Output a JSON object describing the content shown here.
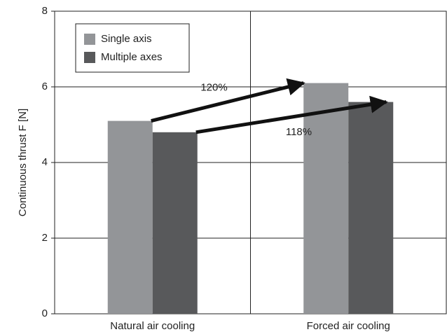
{
  "chart_data": {
    "type": "bar",
    "y_label": "Continuous thrust F [N]",
    "categories": [
      "Natural air cooling",
      "Forced air cooling"
    ],
    "series": [
      {
        "name": "Single axis",
        "color": "#939598",
        "values": [
          5.1,
          6.1
        ]
      },
      {
        "name": "Multiple axes",
        "color": "#58595b",
        "values": [
          4.8,
          5.6
        ]
      }
    ],
    "annotations": [
      "120%",
      "118%"
    ],
    "ylim": [
      0,
      8
    ],
    "yticks": [
      0,
      2,
      4,
      6,
      8
    ],
    "grid": true,
    "legend": "upper left"
  }
}
